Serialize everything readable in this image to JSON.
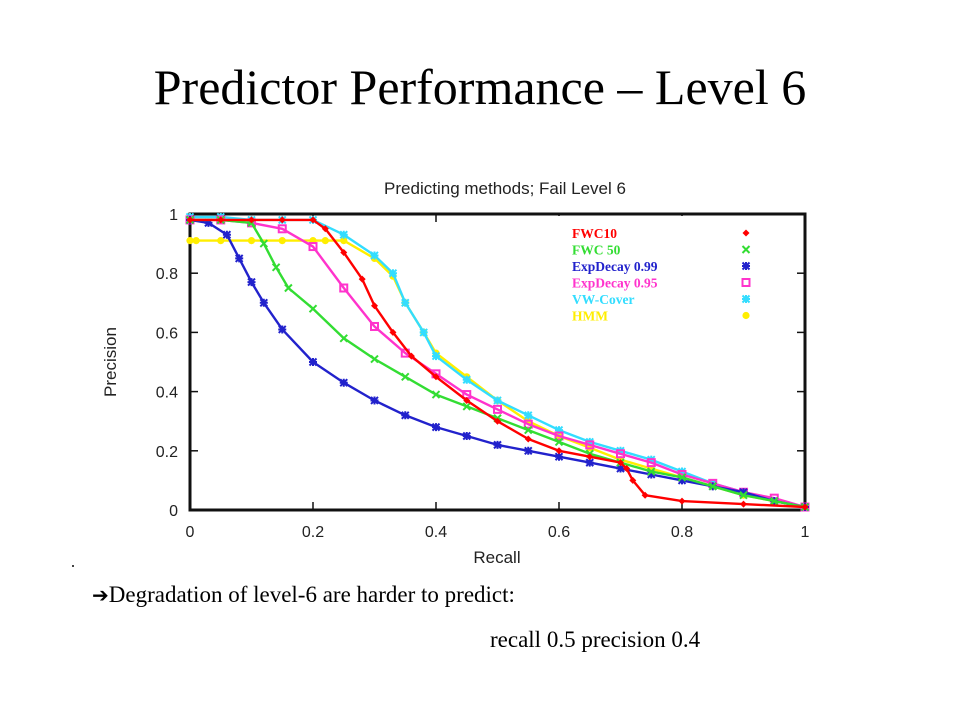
{
  "slide": {
    "title": "Predictor Performance – Level 6",
    "bullet_arrow": "➔",
    "bullet_text": "Degradation of level-6 are harder to predict:",
    "bullet_sub": "recall 0.5 precision 0.4"
  },
  "chart_data": {
    "type": "line",
    "title": "Predicting methods; Fail Level 6",
    "xlabel": "Recall",
    "ylabel": "Precision",
    "xlim": [
      0,
      1
    ],
    "ylim": [
      0,
      1
    ],
    "xticks": [
      0,
      0.2,
      0.4,
      0.6,
      0.8,
      1
    ],
    "xtick_labels": [
      "0",
      "0.2",
      "0.4",
      "0.6",
      "0.8",
      "1"
    ],
    "yticks": [
      0,
      0.2,
      0.4,
      0.6,
      0.8,
      1
    ],
    "ytick_labels": [
      "0",
      "0.2",
      "0.4",
      "0.6",
      "0.8",
      "1"
    ],
    "grid": false,
    "legend_position": "top-right",
    "series": [
      {
        "name": "FWC10",
        "color": "#ff0000",
        "marker": "diamond",
        "x": [
          0,
          0.05,
          0.1,
          0.15,
          0.2,
          0.22,
          0.25,
          0.28,
          0.3,
          0.33,
          0.36,
          0.4,
          0.45,
          0.5,
          0.55,
          0.6,
          0.65,
          0.7,
          0.71,
          0.72,
          0.74,
          0.8,
          0.9,
          1.0
        ],
        "y": [
          0.98,
          0.98,
          0.98,
          0.98,
          0.98,
          0.95,
          0.87,
          0.78,
          0.69,
          0.6,
          0.52,
          0.45,
          0.37,
          0.3,
          0.24,
          0.2,
          0.18,
          0.16,
          0.14,
          0.1,
          0.05,
          0.03,
          0.02,
          0.01
        ]
      },
      {
        "name": "FWC 50",
        "color": "#33dd33",
        "marker": "x",
        "x": [
          0,
          0.05,
          0.1,
          0.12,
          0.14,
          0.16,
          0.2,
          0.25,
          0.3,
          0.35,
          0.4,
          0.45,
          0.5,
          0.55,
          0.6,
          0.65,
          0.7,
          0.75,
          0.8,
          0.85,
          0.9,
          0.95,
          1.0
        ],
        "y": [
          0.98,
          0.98,
          0.97,
          0.9,
          0.82,
          0.75,
          0.68,
          0.58,
          0.51,
          0.45,
          0.39,
          0.35,
          0.31,
          0.27,
          0.23,
          0.19,
          0.16,
          0.13,
          0.11,
          0.08,
          0.05,
          0.03,
          0.01
        ]
      },
      {
        "name": "ExpDecay 0.99",
        "color": "#2222cc",
        "marker": "star",
        "x": [
          0,
          0.03,
          0.06,
          0.08,
          0.1,
          0.12,
          0.15,
          0.2,
          0.25,
          0.3,
          0.35,
          0.4,
          0.45,
          0.5,
          0.55,
          0.6,
          0.65,
          0.7,
          0.75,
          0.8,
          0.85,
          0.9,
          0.95,
          1.0
        ],
        "y": [
          0.98,
          0.97,
          0.93,
          0.85,
          0.77,
          0.7,
          0.61,
          0.5,
          0.43,
          0.37,
          0.32,
          0.28,
          0.25,
          0.22,
          0.2,
          0.18,
          0.16,
          0.14,
          0.12,
          0.1,
          0.08,
          0.06,
          0.03,
          0.01
        ]
      },
      {
        "name": "ExpDecay 0.95",
        "color": "#ff33cc",
        "marker": "square",
        "x": [
          0,
          0.05,
          0.1,
          0.15,
          0.2,
          0.25,
          0.3,
          0.35,
          0.4,
          0.45,
          0.5,
          0.55,
          0.6,
          0.65,
          0.7,
          0.75,
          0.8,
          0.85,
          0.9,
          0.95,
          1.0
        ],
        "y": [
          0.98,
          0.98,
          0.97,
          0.95,
          0.89,
          0.75,
          0.62,
          0.53,
          0.46,
          0.39,
          0.34,
          0.29,
          0.25,
          0.22,
          0.19,
          0.16,
          0.12,
          0.09,
          0.06,
          0.04,
          0.01
        ]
      },
      {
        "name": "VW-Cover",
        "color": "#33ddff",
        "marker": "star",
        "x": [
          0,
          0.05,
          0.1,
          0.15,
          0.2,
          0.25,
          0.3,
          0.33,
          0.35,
          0.38,
          0.4,
          0.45,
          0.5,
          0.55,
          0.6,
          0.65,
          0.7,
          0.75,
          0.8,
          0.85,
          0.9,
          0.95,
          1.0
        ],
        "y": [
          0.99,
          0.99,
          0.98,
          0.98,
          0.98,
          0.93,
          0.86,
          0.8,
          0.7,
          0.6,
          0.52,
          0.44,
          0.37,
          0.32,
          0.27,
          0.23,
          0.2,
          0.17,
          0.13,
          0.09,
          0.06,
          0.03,
          0.01
        ]
      },
      {
        "name": "HMM",
        "color": "#ffee00",
        "marker": "circle",
        "x": [
          0,
          0.01,
          0.05,
          0.1,
          0.15,
          0.2,
          0.22,
          0.25,
          0.3,
          0.33,
          0.35,
          0.38,
          0.4,
          0.45,
          0.5,
          0.55,
          0.6,
          0.65,
          0.7,
          0.75,
          0.8,
          0.85,
          0.9,
          0.95,
          1.0
        ],
        "y": [
          0.91,
          0.91,
          0.91,
          0.91,
          0.91,
          0.91,
          0.91,
          0.91,
          0.85,
          0.79,
          0.7,
          0.6,
          0.53,
          0.45,
          0.37,
          0.3,
          0.25,
          0.21,
          0.17,
          0.14,
          0.11,
          0.08,
          0.05,
          0.03,
          0.01
        ]
      }
    ]
  }
}
